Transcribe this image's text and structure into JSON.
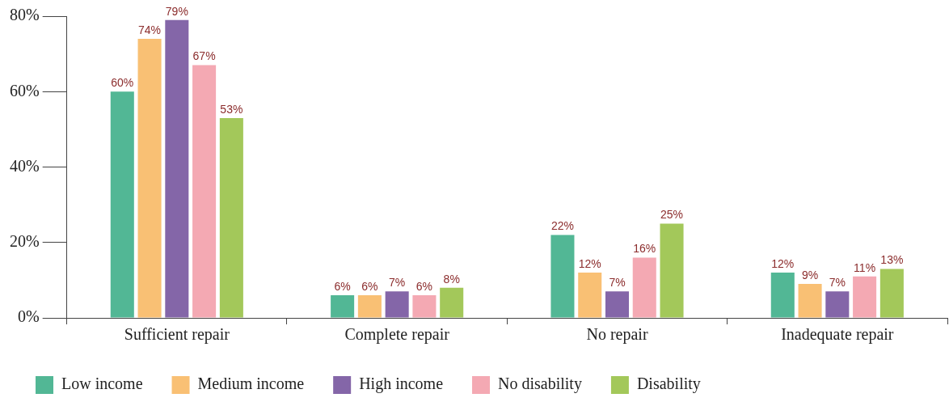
{
  "chart_data": {
    "type": "bar",
    "categories": [
      "Sufficient repair",
      "Complete repair",
      "No repair",
      "Inadequate repair"
    ],
    "series": [
      {
        "name": "Low income",
        "color": "#52b795",
        "values": [
          60,
          6,
          22,
          12
        ],
        "value_labels": [
          "60%",
          "6%",
          "22%",
          "12%"
        ]
      },
      {
        "name": "Medium income",
        "color": "#f9c074",
        "values": [
          74,
          6,
          12,
          9
        ],
        "value_labels": [
          "74%",
          "6%",
          "12%",
          "9%"
        ]
      },
      {
        "name": "High income",
        "color": "#8466a8",
        "values": [
          79,
          7,
          7,
          7
        ],
        "value_labels": [
          "79%",
          "7%",
          "7%",
          "7%"
        ]
      },
      {
        "name": "No disability",
        "color": "#f4a9b3",
        "values": [
          67,
          6,
          16,
          11
        ],
        "value_labels": [
          "67%",
          "6%",
          "16%",
          "11%"
        ]
      },
      {
        "name": "Disability",
        "color": "#a3c85a",
        "values": [
          53,
          8,
          25,
          13
        ],
        "value_labels": [
          "53%",
          "8%",
          "25%",
          "13%"
        ]
      }
    ],
    "ylim": [
      0,
      80
    ],
    "yticks": [
      {
        "value": 0,
        "label": "0%"
      },
      {
        "value": 20,
        "label": "20%"
      },
      {
        "value": 40,
        "label": "40%"
      },
      {
        "value": 60,
        "label": "60%"
      },
      {
        "value": 80,
        "label": "80%"
      }
    ],
    "grid": false,
    "legend": "bottom"
  }
}
